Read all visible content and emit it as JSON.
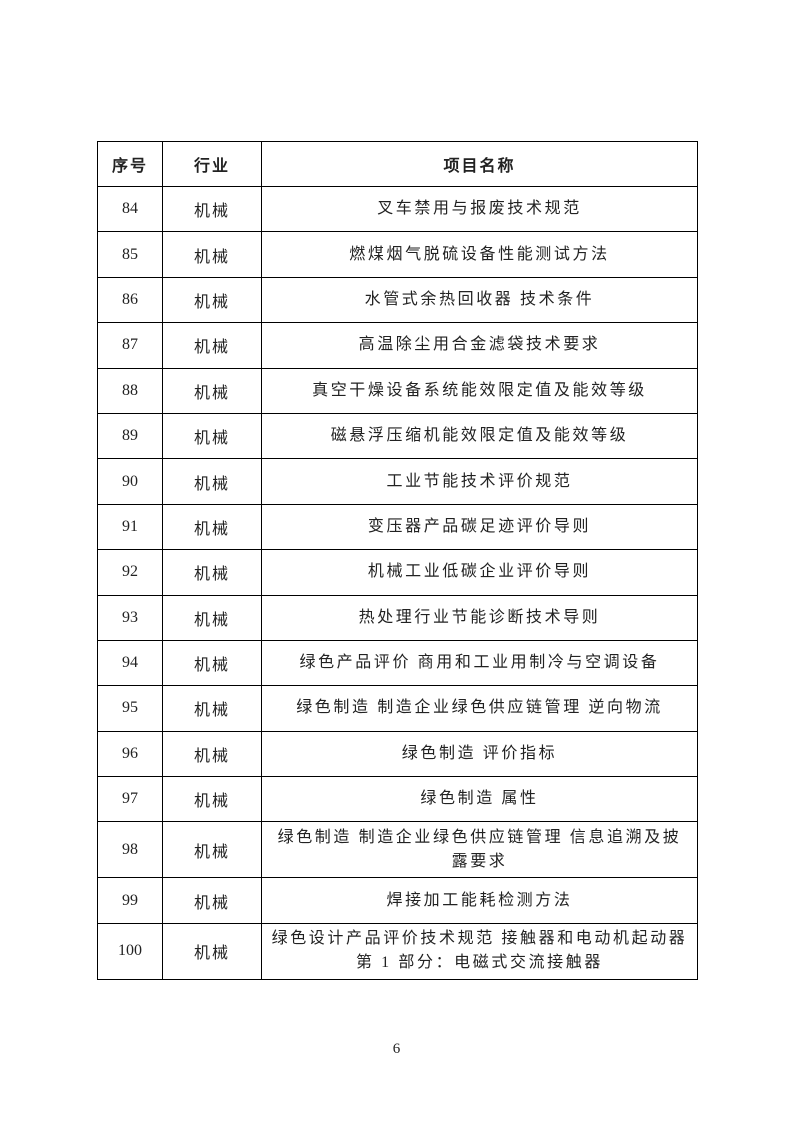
{
  "table": {
    "headers": {
      "no": "序号",
      "industry": "行业",
      "name": "项目名称"
    },
    "rows": [
      {
        "no": "84",
        "industry": "机械",
        "name": "叉车禁用与报废技术规范"
      },
      {
        "no": "85",
        "industry": "机械",
        "name": "燃煤烟气脱硫设备性能测试方法"
      },
      {
        "no": "86",
        "industry": "机械",
        "name": "水管式余热回收器 技术条件"
      },
      {
        "no": "87",
        "industry": "机械",
        "name": "高温除尘用合金滤袋技术要求"
      },
      {
        "no": "88",
        "industry": "机械",
        "name": "真空干燥设备系统能效限定值及能效等级"
      },
      {
        "no": "89",
        "industry": "机械",
        "name": "磁悬浮压缩机能效限定值及能效等级"
      },
      {
        "no": "90",
        "industry": "机械",
        "name": "工业节能技术评价规范"
      },
      {
        "no": "91",
        "industry": "机械",
        "name": "变压器产品碳足迹评价导则"
      },
      {
        "no": "92",
        "industry": "机械",
        "name": "机械工业低碳企业评价导则"
      },
      {
        "no": "93",
        "industry": "机械",
        "name": "热处理行业节能诊断技术导则"
      },
      {
        "no": "94",
        "industry": "机械",
        "name": "绿色产品评价 商用和工业用制冷与空调设备"
      },
      {
        "no": "95",
        "industry": "机械",
        "name": "绿色制造 制造企业绿色供应链管理 逆向物流"
      },
      {
        "no": "96",
        "industry": "机械",
        "name": "绿色制造 评价指标"
      },
      {
        "no": "97",
        "industry": "机械",
        "name": "绿色制造 属性"
      },
      {
        "no": "98",
        "industry": "机械",
        "name": "绿色制造 制造企业绿色供应链管理 信息追溯及披\n露要求"
      },
      {
        "no": "99",
        "industry": "机械",
        "name": "焊接加工能耗检测方法"
      },
      {
        "no": "100",
        "industry": "机械",
        "name": "绿色设计产品评价技术规范 接触器和电动机起动器\n第 1 部分：电磁式交流接触器"
      }
    ]
  },
  "page_number": "6"
}
